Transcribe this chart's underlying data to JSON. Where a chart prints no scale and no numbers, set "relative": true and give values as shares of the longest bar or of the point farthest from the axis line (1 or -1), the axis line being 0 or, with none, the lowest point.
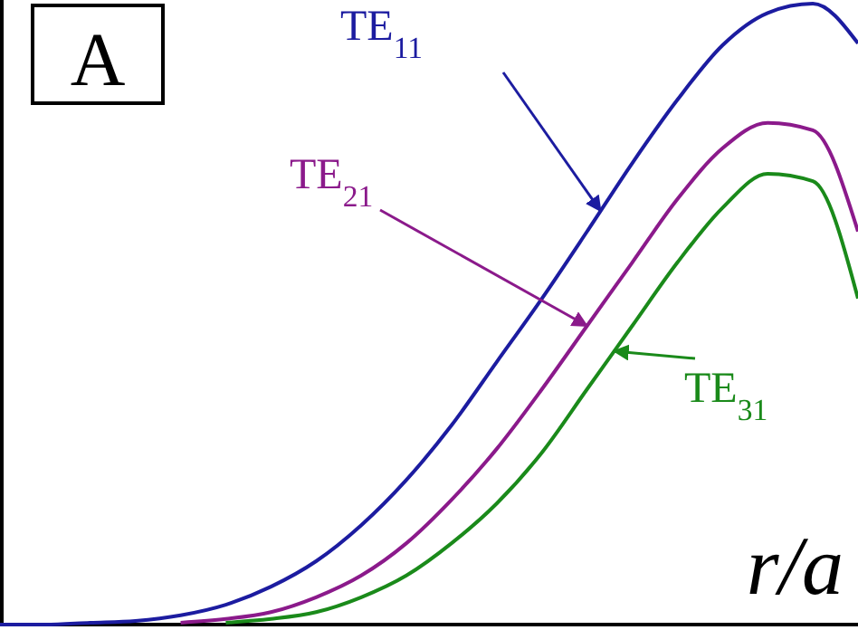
{
  "chart_data": {
    "type": "line",
    "relative": true,
    "xlabel": "r/a",
    "annotations": [
      "A"
    ],
    "grid": false,
    "categories": [
      null,
      null,
      null,
      null,
      null,
      null,
      null,
      null,
      null,
      null,
      null,
      null,
      null,
      null,
      null,
      null,
      null,
      null,
      null,
      null
    ],
    "series": [
      {
        "name": "TE$_{11}$",
        "color": "#1c1ca0",
        "values": [
          0,
          0,
          0.003,
          0.006,
          0.015,
          0.032,
          0.061,
          0.102,
          0.16,
          0.233,
          0.321,
          0.423,
          0.525,
          0.633,
          0.743,
          0.845,
          0.933,
          0.985,
          1.0,
          0.936
        ]
      },
      {
        "name": "TE$_{21}$",
        "color": "#8b1a8b",
        "values": [
          null,
          null,
          null,
          null,
          0.003,
          0.009,
          0.02,
          0.044,
          0.079,
          0.131,
          0.201,
          0.283,
          0.379,
          0.481,
          0.583,
          0.685,
          0.767,
          0.808,
          0.796,
          0.633
        ]
      },
      {
        "name": "TE$_{31}$",
        "color": "#1a8a1a",
        "values": [
          null,
          null,
          null,
          null,
          null,
          0.003,
          0.009,
          0.02,
          0.044,
          0.079,
          0.131,
          0.195,
          0.277,
          0.379,
          0.481,
          0.583,
          0.671,
          0.726,
          0.714,
          0.525
        ]
      }
    ]
  }
}
